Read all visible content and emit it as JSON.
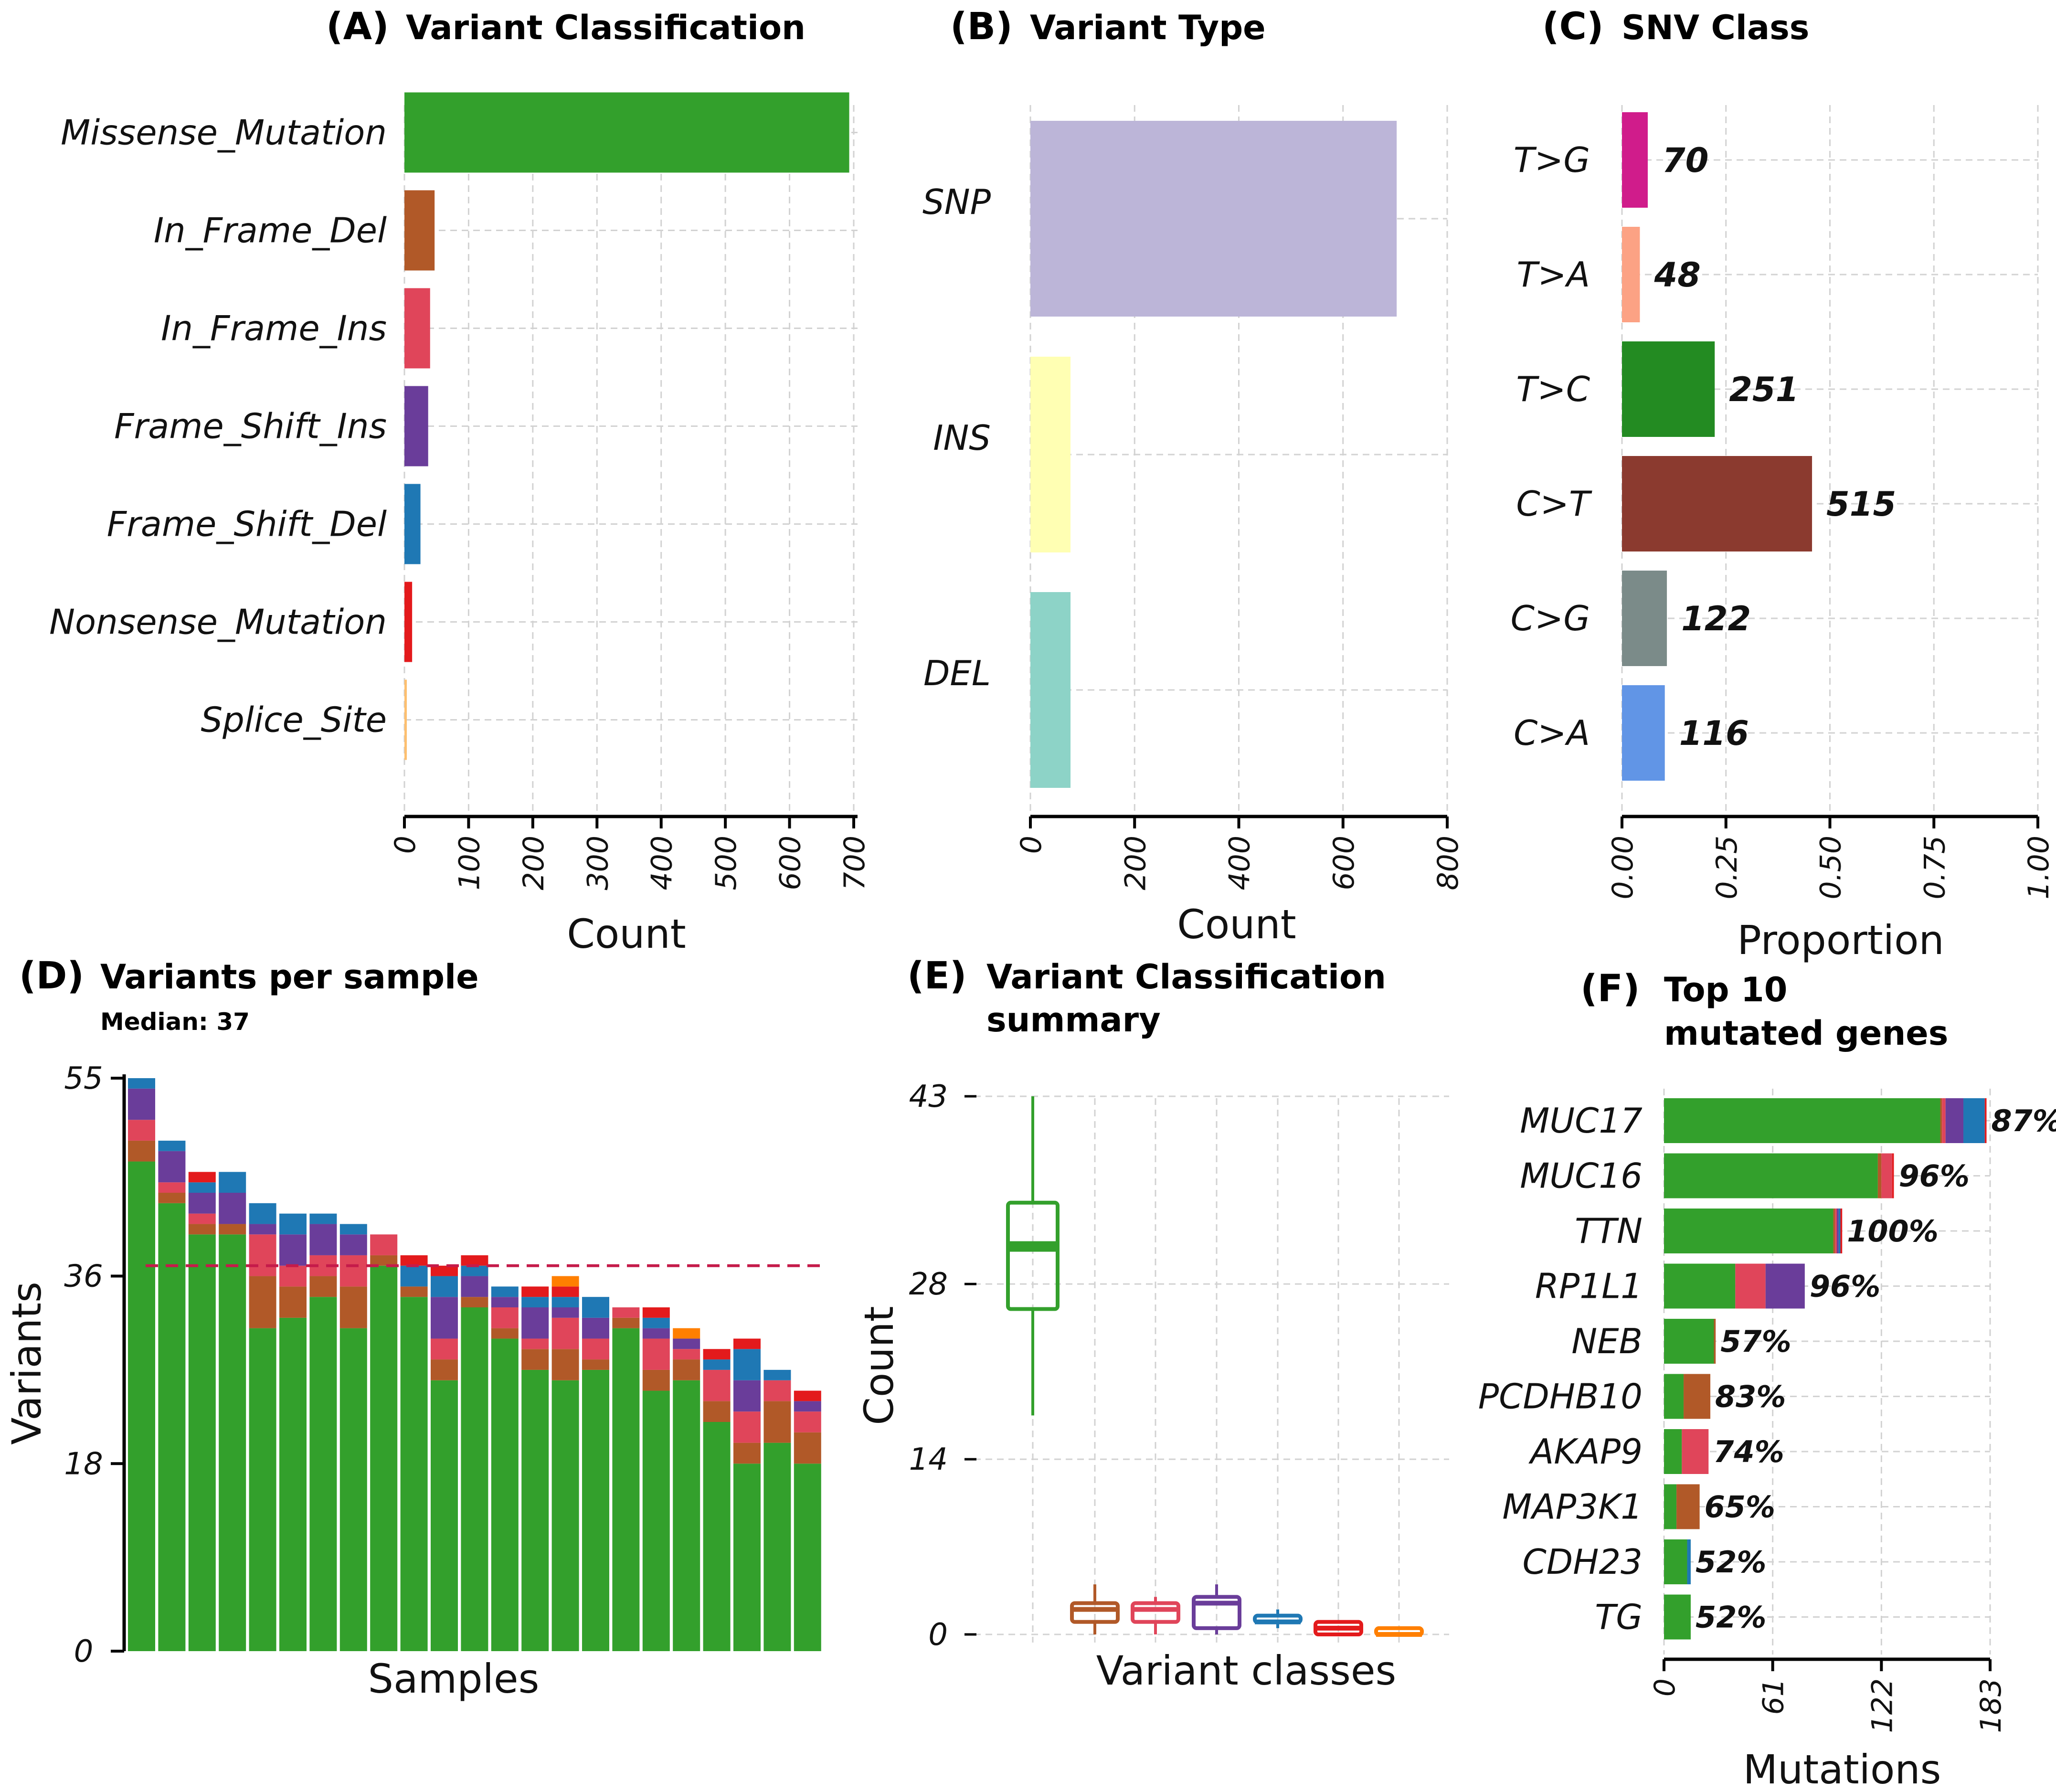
{
  "colors": {
    "Missense_Mutation": "#33a02c",
    "In_Frame_Del": "#b15928",
    "In_Frame_Ins": "#e0455a",
    "Frame_Shift_Ins": "#6a3d9a",
    "Frame_Shift_Del": "#1f78b4",
    "Nonsense_Mutation": "#e31a1c",
    "Splice_Site": "#ff7f00",
    "median_line": "#c51b4a"
  },
  "chart_data": [
    {
      "id": "A",
      "type": "bar",
      "orientation": "horizontal",
      "tag": "(A)",
      "title": "Variant Classification",
      "categories": [
        "Missense_Mutation",
        "In_Frame_Del",
        "In_Frame_Ins",
        "Frame_Shift_Ins",
        "Frame_Shift_Del",
        "Nonsense_Mutation",
        "Splice_Site"
      ],
      "values": [
        693,
        47,
        40,
        37,
        25,
        12,
        3
      ],
      "colors": [
        "#33a02c",
        "#b15928",
        "#e0455a",
        "#6a3d9a",
        "#1f78b4",
        "#e31a1c",
        "#fdbf6f"
      ],
      "xlabel": "Count",
      "xlim": [
        0,
        700
      ],
      "ticks": [
        "0",
        "100",
        "200",
        "300",
        "400",
        "500",
        "600",
        "700"
      ]
    },
    {
      "id": "B",
      "type": "bar",
      "orientation": "horizontal",
      "tag": "(B)",
      "title": "Variant Type",
      "categories": [
        "SNP",
        "INS",
        "DEL"
      ],
      "values": [
        703,
        77,
        77
      ],
      "colors": [
        "#bcb5d8",
        "#ffffb3",
        "#8dd3c7"
      ],
      "xlabel": "Count",
      "xlim": [
        0,
        800
      ],
      "ticks": [
        "0",
        "200",
        "400",
        "600",
        "800"
      ]
    },
    {
      "id": "C",
      "type": "bar",
      "orientation": "horizontal",
      "tag": "(C)",
      "title": "SNV Class",
      "categories": [
        "T>G",
        "T>A",
        "T>C",
        "C>T",
        "C>G",
        "C>A"
      ],
      "counts": [
        "70",
        "48",
        "251",
        "515",
        "122",
        "116"
      ],
      "values": [
        0.062,
        0.043,
        0.223,
        0.457,
        0.108,
        0.103
      ],
      "colors": [
        "#d01c8b",
        "#fca284",
        "#238b22",
        "#8b3a2f",
        "#7b8b89",
        "#6195e6"
      ],
      "xlabel": "Proportion",
      "xlim": [
        0,
        1
      ],
      "ticks": [
        "0.00",
        "0.25",
        "0.50",
        "0.75",
        "1.00"
      ]
    },
    {
      "id": "D",
      "type": "bar",
      "stacked": true,
      "tag": "(D)",
      "title": "Variants per sample",
      "subtitle": "Median: 37",
      "xlabel": "Samples",
      "ylabel": "Variants",
      "ylim": [
        0,
        55
      ],
      "yticks": [
        "0",
        "18",
        "36",
        "55"
      ],
      "median": 37,
      "series_order": [
        "Missense_Mutation",
        "In_Frame_Del",
        "In_Frame_Ins",
        "Frame_Shift_Ins",
        "Frame_Shift_Del",
        "Nonsense_Mutation",
        "Splice_Site"
      ],
      "samples": [
        [
          47,
          2,
          2,
          3,
          1,
          0,
          0
        ],
        [
          43,
          1,
          1,
          3,
          1,
          0,
          0
        ],
        [
          40,
          1,
          1,
          2,
          1,
          1,
          0
        ],
        [
          40,
          1,
          0,
          3,
          2,
          0,
          0
        ],
        [
          31,
          5,
          4,
          1,
          2,
          0,
          0
        ],
        [
          32,
          3,
          2,
          3,
          2,
          0,
          0
        ],
        [
          34,
          2,
          2,
          3,
          1,
          0,
          0
        ],
        [
          31,
          4,
          3,
          2,
          1,
          0,
          0
        ],
        [
          37,
          1,
          2,
          0,
          0,
          0,
          0
        ],
        [
          34,
          1,
          0,
          0,
          2,
          1,
          0
        ],
        [
          26,
          2,
          2,
          4,
          2,
          1,
          0
        ],
        [
          33,
          1,
          0,
          2,
          1,
          1,
          0
        ],
        [
          30,
          1,
          2,
          1,
          1,
          0,
          0
        ],
        [
          27,
          2,
          1,
          3,
          1,
          1,
          0
        ],
        [
          26,
          3,
          3,
          1,
          1,
          1,
          1
        ],
        [
          27,
          1,
          2,
          2,
          2,
          0,
          0
        ],
        [
          31,
          1,
          1,
          0,
          0,
          0,
          0
        ],
        [
          25,
          2,
          3,
          1,
          1,
          1,
          0
        ],
        [
          26,
          2,
          1,
          1,
          0,
          0,
          1
        ],
        [
          22,
          2,
          3,
          0,
          1,
          1,
          0
        ],
        [
          18,
          2,
          3,
          3,
          3,
          1,
          0
        ],
        [
          20,
          4,
          2,
          0,
          1,
          0,
          0
        ],
        [
          18,
          3,
          2,
          1,
          0,
          1,
          0
        ]
      ]
    },
    {
      "id": "E",
      "type": "box",
      "tag": "(E)",
      "title_lines": [
        "Variant Classification",
        "summary"
      ],
      "xlabel": "Variant classes",
      "ylabel": "Count",
      "ylim": [
        0,
        43
      ],
      "yticks": [
        "0",
        "14",
        "28",
        "43"
      ],
      "boxes": [
        {
          "class": "Missense_Mutation",
          "color": "#33a02c",
          "min": 17.5,
          "q1": 26,
          "median": 31,
          "q3": 34.5,
          "max": 43
        },
        {
          "class": "In_Frame_Del",
          "color": "#b15928",
          "min": 0,
          "q1": 1,
          "median": 2,
          "q3": 2.5,
          "max": 4
        },
        {
          "class": "In_Frame_Ins",
          "color": "#e0455a",
          "min": 0,
          "q1": 1,
          "median": 2,
          "q3": 2.5,
          "max": 3
        },
        {
          "class": "Frame_Shift_Ins",
          "color": "#6a3d9a",
          "min": 0,
          "q1": 0.5,
          "median": 2.5,
          "q3": 3,
          "max": 4
        },
        {
          "class": "Frame_Shift_Del",
          "color": "#1f78b4",
          "min": 0.5,
          "q1": 1,
          "median": 1,
          "q3": 1.5,
          "max": 2
        },
        {
          "class": "Nonsense_Mutation",
          "color": "#e31a1c",
          "min": 0,
          "q1": 0,
          "median": 0.5,
          "q3": 1,
          "max": 1
        },
        {
          "class": "Splice_Site",
          "color": "#ff7f00",
          "min": 0,
          "q1": 0,
          "median": 0,
          "q3": 0.5,
          "max": 0.5
        }
      ]
    },
    {
      "id": "F",
      "type": "bar",
      "orientation": "horizontal",
      "stacked": true,
      "tag": "(F)",
      "title_lines": [
        "Top 10",
        "mutated genes"
      ],
      "xlabel": "Mutations",
      "xlim": [
        0,
        183
      ],
      "ticks": [
        "0",
        "61",
        "122",
        "183"
      ],
      "series_order": [
        "Missense_Mutation",
        "In_Frame_Del",
        "In_Frame_Ins",
        "Frame_Shift_Ins",
        "Frame_Shift_Del",
        "Nonsense_Mutation"
      ],
      "genes": [
        {
          "name": "MUC17",
          "label": "87%",
          "segments": [
            155,
            1,
            2,
            10,
            12,
            1
          ]
        },
        {
          "name": "MUC16",
          "label": "96%",
          "segments": [
            120,
            2,
            6,
            0,
            0,
            1
          ]
        },
        {
          "name": "TTN",
          "label": "100%",
          "segments": [
            95,
            1,
            1,
            1,
            1,
            1
          ]
        },
        {
          "name": "RP1L1",
          "label": "96%",
          "segments": [
            40,
            0,
            17,
            22,
            0,
            0
          ]
        },
        {
          "name": "NEB",
          "label": "57%",
          "segments": [
            28,
            1,
            0,
            0,
            0,
            0
          ]
        },
        {
          "name": "PCDHB10",
          "label": "83%",
          "segments": [
            11,
            15,
            0,
            0,
            0,
            0
          ]
        },
        {
          "name": "AKAP9",
          "label": "74%",
          "segments": [
            10,
            0,
            15,
            0,
            0,
            0
          ]
        },
        {
          "name": "MAP3K1",
          "label": "65%",
          "segments": [
            7,
            13,
            0,
            0,
            0,
            0
          ]
        },
        {
          "name": "CDH23",
          "label": "52%",
          "segments": [
            13,
            0,
            0,
            0,
            2,
            0
          ]
        },
        {
          "name": "TG",
          "label": "52%",
          "segments": [
            15,
            0,
            0,
            0,
            0,
            0
          ]
        }
      ]
    }
  ]
}
